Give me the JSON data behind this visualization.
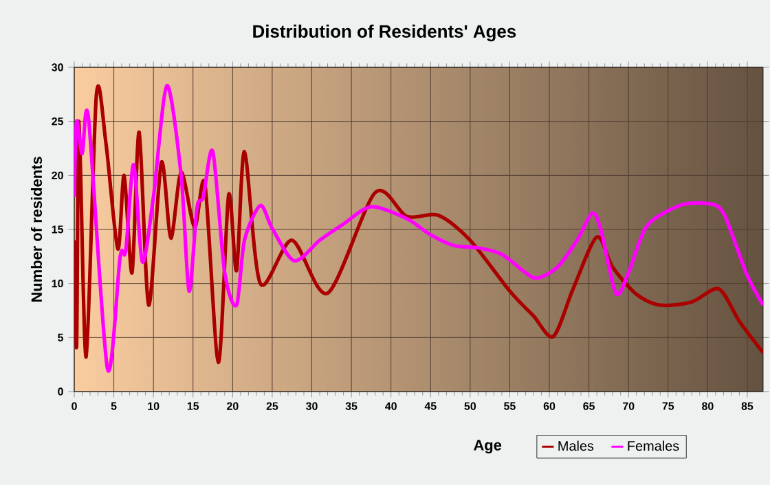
{
  "chart_data": {
    "type": "line",
    "title": "Distribution of Residents' Ages",
    "xlabel": "Age",
    "ylabel": "Number of residents",
    "xlim": [
      0,
      87
    ],
    "ylim": [
      0,
      30
    ],
    "xticks": [
      0,
      5,
      10,
      15,
      20,
      25,
      30,
      35,
      40,
      45,
      50,
      55,
      60,
      65,
      70,
      75,
      80,
      85
    ],
    "yticks": [
      0,
      5,
      10,
      15,
      20,
      25,
      30
    ],
    "grid": true,
    "legend": "bottom right",
    "line_style": "solid",
    "series": [
      {
        "name": "Males",
        "color": "#aa0000",
        "x": [
          0,
          0.3,
          0.6,
          1.5,
          2.8,
          4,
          5.5,
          6.3,
          7.3,
          8.2,
          9.4,
          11,
          12.2,
          13.5,
          15.2,
          16.5,
          18.2,
          19.5,
          20.5,
          21.5,
          23.5,
          27.5,
          32,
          38,
          42,
          46,
          50,
          55,
          58,
          60.5,
          63,
          66,
          68,
          71,
          74,
          78,
          81.4,
          84,
          87
        ],
        "values": [
          14,
          4.2,
          25,
          3.2,
          27.5,
          23,
          13.2,
          20,
          11,
          24,
          8,
          21.2,
          14.2,
          20.3,
          15.2,
          19.2,
          2.7,
          18.2,
          11.2,
          22.2,
          10,
          14,
          9.1,
          18.4,
          16.2,
          16.3,
          14,
          9.3,
          7,
          5.1,
          9.5,
          14.3,
          11.5,
          9,
          8,
          8.3,
          9.5,
          6.5,
          3.6
        ]
      },
      {
        "name": "Females",
        "color": "#ff00ff",
        "x": [
          0,
          0.3,
          1,
          1.8,
          4.2,
          5.8,
          6.5,
          7.5,
          8.6,
          10,
          11.7,
          13.5,
          14.5,
          15.5,
          16.3,
          17.5,
          19,
          20.5,
          21.5,
          23.5,
          25,
          27.8,
          31,
          34,
          37.5,
          42,
          45,
          48,
          51,
          54,
          57,
          58.5,
          61,
          63.5,
          65.4,
          66.5,
          68.4,
          70,
          72.3,
          76.4,
          79.9,
          82,
          84.9,
          87
        ],
        "values": [
          18,
          25,
          22,
          25.3,
          2.1,
          12.5,
          13,
          21,
          12,
          18,
          28.3,
          20,
          9.3,
          17,
          18,
          22.2,
          11,
          8,
          14,
          17.2,
          15.1,
          12.1,
          14,
          15.5,
          17.1,
          16,
          14.5,
          13.5,
          13.3,
          12.7,
          11,
          10.5,
          11.5,
          14,
          16.5,
          15,
          9.1,
          11,
          15.3,
          17.2,
          17.4,
          16.5,
          10.9,
          8
        ]
      }
    ]
  }
}
